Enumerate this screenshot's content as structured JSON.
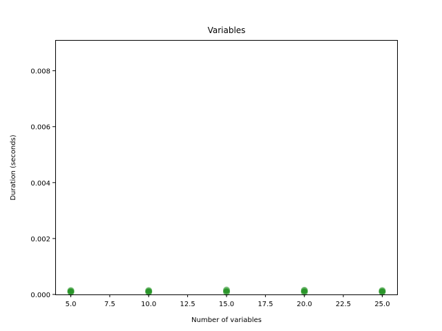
{
  "chart_data": {
    "type": "scatter",
    "title": "Variables",
    "xlabel": "Number of variables",
    "ylabel": "Duration (seconds)",
    "xlim": [
      4.0,
      26.0
    ],
    "ylim": [
      0.0,
      0.0091
    ],
    "xticks": [
      5.0,
      7.5,
      10.0,
      12.5,
      15.0,
      17.5,
      20.0,
      22.5,
      25.0
    ],
    "xtick_labels": [
      "5.0",
      "7.5",
      "10.0",
      "12.5",
      "15.0",
      "17.5",
      "20.0",
      "22.5",
      "25.0"
    ],
    "yticks": [
      0.0,
      0.002,
      0.004,
      0.006,
      0.008
    ],
    "ytick_labels": [
      "0.000",
      "0.002",
      "0.004",
      "0.006",
      "0.008"
    ],
    "grid": false,
    "marker_color": "#008000",
    "points": [
      {
        "x": 5,
        "y": 8e-05
      },
      {
        "x": 5,
        "y": 0.00011
      },
      {
        "x": 5,
        "y": 0.00014
      },
      {
        "x": 10,
        "y": 8e-05
      },
      {
        "x": 10,
        "y": 0.00011
      },
      {
        "x": 10,
        "y": 0.00014
      },
      {
        "x": 15,
        "y": 8e-05
      },
      {
        "x": 15,
        "y": 0.00012
      },
      {
        "x": 15,
        "y": 0.00016
      },
      {
        "x": 20,
        "y": 8e-05
      },
      {
        "x": 20,
        "y": 0.00012
      },
      {
        "x": 20,
        "y": 0.00015
      },
      {
        "x": 25,
        "y": 8e-05
      },
      {
        "x": 25,
        "y": 0.00011
      },
      {
        "x": 25,
        "y": 0.00014
      }
    ]
  }
}
